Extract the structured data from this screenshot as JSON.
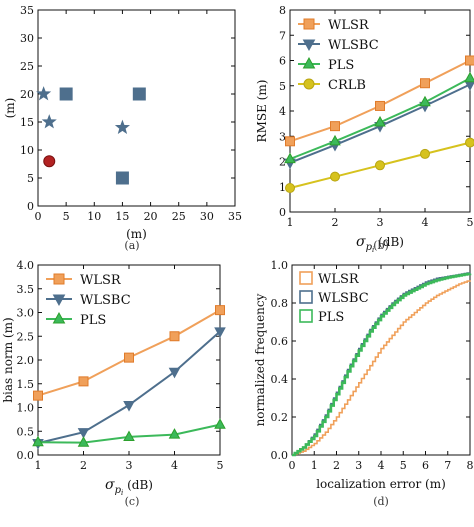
{
  "panels": {
    "a": {
      "caption": "(a)",
      "type": "scatter",
      "xlabel": "(m)",
      "ylabel": "(m)",
      "xlim": [
        0,
        35
      ],
      "ylim": [
        0,
        35
      ],
      "xticks": [
        0,
        5,
        10,
        15,
        20,
        25,
        30,
        35
      ],
      "yticks": [
        0,
        5,
        10,
        15,
        20,
        25,
        30,
        35
      ],
      "points": [
        {
          "kind": "square",
          "x": 5,
          "y": 20,
          "color": "#4e6f8d"
        },
        {
          "kind": "square",
          "x": 18,
          "y": 20,
          "color": "#4e6f8d"
        },
        {
          "kind": "square",
          "x": 15,
          "y": 5,
          "color": "#4e6f8d"
        },
        {
          "kind": "star",
          "x": 1,
          "y": 20,
          "color": "#4e6f8d"
        },
        {
          "kind": "star",
          "x": 2,
          "y": 15,
          "color": "#4e6f8d"
        },
        {
          "kind": "star",
          "x": 15,
          "y": 14,
          "color": "#4e6f8d"
        },
        {
          "kind": "circle",
          "x": 2,
          "y": 8,
          "color": "#b22222"
        }
      ]
    },
    "b": {
      "caption": "(b)",
      "type": "line",
      "xlabel": "σ_{p_i} (dB)",
      "ylabel": "RMSE (m)",
      "xlim": [
        1,
        5
      ],
      "ylim": [
        0,
        8
      ],
      "xticks": [
        1,
        2,
        3,
        4,
        5
      ],
      "yticks": [
        0,
        1,
        2,
        3,
        4,
        5,
        6,
        7,
        8
      ],
      "legend": "upper-left",
      "series": [
        {
          "name": "WLSR",
          "marker": "square",
          "color": "#f0a05a",
          "edge": "#e07b2a",
          "x": [
            1,
            2,
            3,
            4,
            5
          ],
          "values": [
            2.8,
            3.4,
            4.2,
            5.1,
            6.0
          ]
        },
        {
          "name": "WLSBC",
          "marker": "tri_down",
          "color": "#4e6f8d",
          "edge": "#4e6f8d",
          "x": [
            1,
            2,
            3,
            4,
            5
          ],
          "values": [
            1.95,
            2.65,
            3.4,
            4.2,
            5.05
          ]
        },
        {
          "name": "PLS",
          "marker": "tri_up",
          "color": "#3cb95a",
          "edge": "#2ca02c",
          "x": [
            1,
            2,
            3,
            4,
            5
          ],
          "values": [
            2.1,
            2.8,
            3.55,
            4.35,
            5.3
          ]
        },
        {
          "name": "CRLB",
          "marker": "circle",
          "color": "#d6c21e",
          "edge": "#b8a512",
          "x": [
            1,
            2,
            3,
            4,
            5
          ],
          "values": [
            0.95,
            1.4,
            1.85,
            2.3,
            2.75
          ]
        }
      ]
    },
    "c": {
      "caption": "(c)",
      "type": "line",
      "xlabel": "σ_{p_i} (dB)",
      "ylabel": "bias norm (m)",
      "xlim": [
        1,
        5
      ],
      "ylim": [
        0,
        4
      ],
      "xticks": [
        1,
        2,
        3,
        4,
        5
      ],
      "yticks": [
        0.0,
        0.5,
        1.0,
        1.5,
        2.0,
        2.5,
        3.0,
        3.5,
        4.0
      ],
      "legend": "upper-left",
      "series": [
        {
          "name": "WLSR",
          "marker": "square",
          "color": "#f0a05a",
          "edge": "#e07b2a",
          "x": [
            1,
            2,
            3,
            4,
            5
          ],
          "values": [
            1.25,
            1.55,
            2.05,
            2.5,
            3.05
          ]
        },
        {
          "name": "WLSBC",
          "marker": "tri_down",
          "color": "#4e6f8d",
          "edge": "#4e6f8d",
          "x": [
            1,
            2,
            3,
            4,
            5
          ],
          "values": [
            0.25,
            0.48,
            1.05,
            1.75,
            2.6
          ]
        },
        {
          "name": "PLS",
          "marker": "tri_up",
          "color": "#3cb95a",
          "edge": "#2ca02c",
          "x": [
            1,
            2,
            3,
            4,
            5
          ],
          "values": [
            0.27,
            0.26,
            0.38,
            0.43,
            0.64
          ]
        }
      ]
    },
    "d": {
      "caption": "(d)",
      "type": "cdf",
      "xlabel": "localization error (m)",
      "ylabel": "normalized frequency",
      "xlim": [
        0,
        8
      ],
      "ylim": [
        0,
        1.0
      ],
      "xticks": [
        0,
        1,
        2,
        3,
        4,
        5,
        6,
        7,
        8
      ],
      "yticks": [
        0.0,
        0.2,
        0.4,
        0.6,
        0.8,
        1.0
      ],
      "legend": "upper-left",
      "series": [
        {
          "name": "WLSR",
          "color": "#f0a05a",
          "x": [
            0,
            0.5,
            1,
            1.5,
            2,
            2.5,
            3,
            3.5,
            4,
            4.5,
            5,
            5.5,
            6,
            6.5,
            7,
            7.5,
            8
          ],
          "values": [
            0,
            0.02,
            0.06,
            0.12,
            0.2,
            0.29,
            0.38,
            0.47,
            0.56,
            0.63,
            0.7,
            0.75,
            0.8,
            0.84,
            0.87,
            0.9,
            0.92
          ]
        },
        {
          "name": "WLSBC",
          "color": "#4e6f8d",
          "x": [
            0,
            0.5,
            1,
            1.5,
            2,
            2.5,
            3,
            3.5,
            4,
            4.5,
            5,
            5.5,
            6,
            6.5,
            7,
            7.5,
            8
          ],
          "values": [
            0,
            0.04,
            0.11,
            0.21,
            0.33,
            0.45,
            0.56,
            0.66,
            0.74,
            0.8,
            0.85,
            0.88,
            0.91,
            0.93,
            0.94,
            0.95,
            0.96
          ]
        },
        {
          "name": "PLS",
          "color": "#3cb95a",
          "x": [
            0,
            0.5,
            1,
            1.5,
            2,
            2.5,
            3,
            3.5,
            4,
            4.5,
            5,
            5.5,
            6,
            6.5,
            7,
            7.5,
            8
          ],
          "values": [
            0,
            0.04,
            0.1,
            0.2,
            0.32,
            0.44,
            0.55,
            0.65,
            0.73,
            0.79,
            0.84,
            0.87,
            0.9,
            0.92,
            0.935,
            0.945,
            0.955
          ]
        }
      ]
    }
  }
}
